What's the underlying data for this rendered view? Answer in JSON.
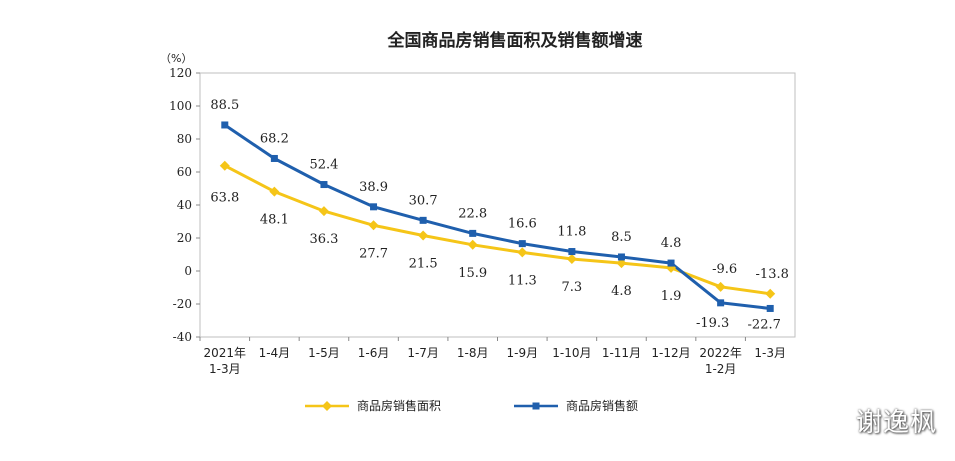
{
  "chart_data": {
    "type": "line",
    "title": "全国商品房销售面积及销售额增速",
    "unit": "（%）",
    "categories": [
      [
        "2021年",
        "1-3月"
      ],
      [
        "1-4月"
      ],
      [
        "1-5月"
      ],
      [
        "1-6月"
      ],
      [
        "1-7月"
      ],
      [
        "1-8月"
      ],
      [
        "1-9月"
      ],
      [
        "1-10月"
      ],
      [
        "1-11月"
      ],
      [
        "1-12月"
      ],
      [
        "2022年",
        "1-2月"
      ],
      [
        "1-3月"
      ]
    ],
    "ylim": [
      -40,
      120
    ],
    "yticks": [
      120,
      100,
      80,
      60,
      40,
      20,
      0,
      -20,
      -40
    ],
    "ytick_labels": [
      "120",
      "100",
      "80",
      "60",
      "40",
      "20",
      "0",
      "-20",
      "-40"
    ],
    "series": [
      {
        "name": "商品房销售面积",
        "color": "#f5c518",
        "marker": "diamond",
        "values": [
          63.8,
          48.1,
          36.3,
          27.7,
          21.5,
          15.9,
          11.3,
          7.3,
          4.8,
          1.9,
          -9.6,
          -13.8
        ],
        "labels": [
          "63.8",
          "48.1",
          "36.3",
          "27.7",
          "21.5",
          "15.9",
          "11.3",
          "7.3",
          "4.8",
          "1.9",
          "-9.6",
          "-13.8"
        ]
      },
      {
        "name": "商品房销售额",
        "color": "#1f5fad",
        "marker": "square",
        "values": [
          88.5,
          68.2,
          52.4,
          38.9,
          30.7,
          22.8,
          16.6,
          11.8,
          8.5,
          4.8,
          -19.3,
          -22.7
        ],
        "labels": [
          "88.5",
          "68.2",
          "52.4",
          "38.9",
          "30.7",
          "22.8",
          "16.6",
          "11.8",
          "8.5",
          "4.8",
          "-19.3",
          "-22.7"
        ]
      }
    ],
    "legend_position": "bottom"
  },
  "watermark": "谢逸枫"
}
